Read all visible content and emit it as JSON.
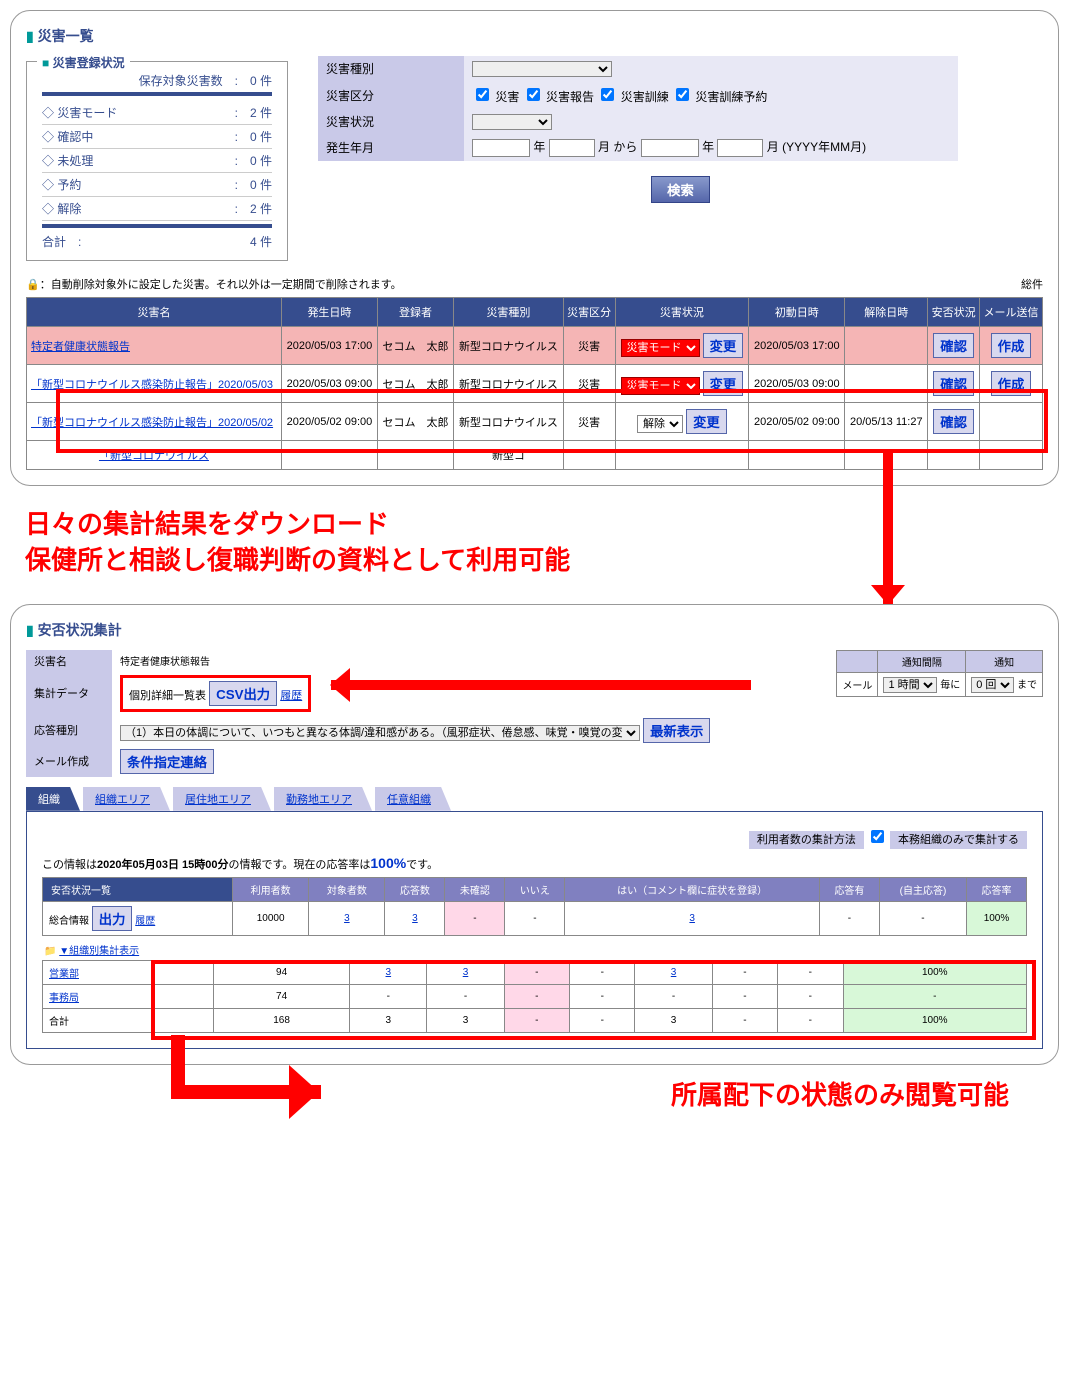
{
  "panel1_title": "災害一覧",
  "regbox": {
    "title": "災害登録状況",
    "header": "保存対象災害数　:　0 件",
    "rows": [
      {
        "label": "災害モード",
        "count": "2 件"
      },
      {
        "label": "確認中",
        "count": "0 件"
      },
      {
        "label": "未処理",
        "count": "0 件"
      },
      {
        "label": "予約",
        "count": "0 件"
      },
      {
        "label": "解除",
        "count": "2 件"
      }
    ],
    "total_label": "合計　:",
    "total_count": "4 件"
  },
  "filters": {
    "type_label": "災害種別",
    "kubun_label": "災害区分",
    "kubun_opts": [
      "災害",
      "災害報告",
      "災害訓練",
      "災害訓練予約"
    ],
    "status_label": "災害状況",
    "ym_label": "発生年月",
    "ym_year": "年",
    "ym_month": "月 から",
    "ym_suffix": "月 (YYYY年MM月)",
    "search": "検索"
  },
  "note_lock": "🔒",
  "note_text": "：自動削除対象外に設定した災害。それ以外は一定期間で削除されます。",
  "note_right": "総件",
  "main_headers": [
    "災害名",
    "発生日時",
    "登録者",
    "災害種別",
    "災害区分",
    "災害状況",
    "初動日時",
    "解除日時",
    "安否状況",
    "メール送信"
  ],
  "main_rows": [
    {
      "name": "特定者健康状態報告",
      "dt": "2020/05/03 17:00",
      "reg": "セコム　太郎",
      "type": "新型コロナウイルス",
      "kubun": "災害",
      "mode": "災害モード",
      "init": "2020/05/03 17:00",
      "rel": "",
      "hl": true
    },
    {
      "name": "「新型コロナウイルス感染防止報告」2020/05/03",
      "dt": "2020/05/03 09:00",
      "reg": "セコム　太郎",
      "type": "新型コロナウイルス",
      "kubun": "災害",
      "mode": "災害モード",
      "init": "2020/05/03 09:00",
      "rel": ""
    },
    {
      "name": "「新型コロナウイルス感染防止報告」2020/05/02",
      "dt": "2020/05/02 09:00",
      "reg": "セコム　太郎",
      "type": "新型コロナウイルス",
      "kubun": "災害",
      "mode": "解除",
      "init": "2020/05/02 09:00",
      "rel": "20/05/13 11:27"
    },
    {
      "name": "「新型コロナウイルス",
      "partial": true
    }
  ],
  "change_btn": "変更",
  "confirm_btn": "確認",
  "create_btn": "作成",
  "annot1": "日々の集計結果をダウンロード\n保健所と相談し復職判断の資料として利用可能",
  "panel2_title": "安否状況集計",
  "sum": {
    "name_label": "災害名",
    "name_val": "特定者健康状態報告",
    "data_label": "集計データ",
    "data_val": "個別詳細一覧表",
    "csv": "CSV出力",
    "hist": "履歴",
    "resp_label": "応答種別",
    "resp_val": "（1）本日の体調について、いつもと異なる体調/違和感がある。（風邪症状、倦怠感、味覚・嗅覚の変化など）",
    "latest": "最新表示",
    "mail_label": "メール作成",
    "mail_btn": "条件指定連絡"
  },
  "notify": {
    "h1": "通知間隔",
    "h2": "通知",
    "cell1": "メール",
    "sel1": "1 時間",
    "t1": "毎に",
    "sel2": "0 回",
    "t2": "まで"
  },
  "tabs": [
    "組織",
    "組織エリア",
    "居住地エリア",
    "勤務地エリア",
    "任意組織"
  ],
  "method_label": "利用者数の集計方法",
  "method_chk": "本務組織のみで集計する",
  "info_prefix": "この情報は",
  "info_dt": "2020年05月03日 15時00分",
  "info_mid": "の情報です。現在の応答率は",
  "info_pct": "100%",
  "info_suffix": "です。",
  "stat_header_main": "安否状況一覧",
  "stat_headers": [
    "利用者数",
    "対象者数",
    "応答数",
    "未確認",
    "いいえ",
    "はい（コメント欄に症状を登録）",
    "応答有",
    "(自主応答)",
    "応答率"
  ],
  "stat_total_label": "総合情報",
  "stat_output": "出力",
  "stat_hist": "履歴",
  "stat_total": [
    "10000",
    "3",
    "3",
    "-",
    "-",
    "3",
    "-",
    "-",
    "100%"
  ],
  "stat_sub_label": "▼組織別集計表示",
  "stat_rows": [
    {
      "org": "営業部",
      "vals": [
        "94",
        "3",
        "3",
        "-",
        "-",
        "3",
        "-",
        "-",
        "100%"
      ]
    },
    {
      "org": "事務局",
      "vals": [
        "74",
        "-",
        "-",
        "-",
        "-",
        "-",
        "-",
        "-",
        "-"
      ]
    },
    {
      "org": "合計",
      "vals": [
        "168",
        "3",
        "3",
        "-",
        "-",
        "3",
        "-",
        "-",
        "100%"
      ],
      "total": true
    }
  ],
  "annot2": "所属配下の状態のみ閲覧可能"
}
